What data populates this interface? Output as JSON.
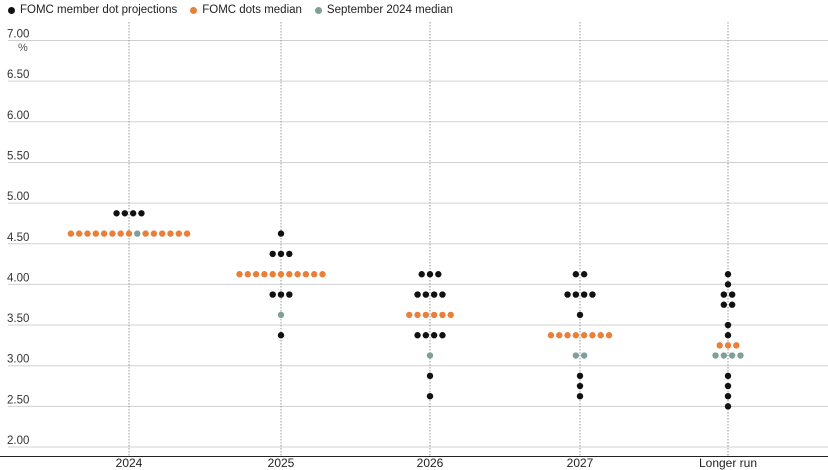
{
  "colors": {
    "member": "#111111",
    "median": "#e8803a",
    "september": "#7fa09a",
    "grid": "#d0d0d0",
    "vline": "#9a9a9a",
    "axis": "#222222"
  },
  "legend": {
    "member": "FOMC member dot projections",
    "median": "FOMC dots median",
    "september": "September 2024 median"
  },
  "chart_data": {
    "type": "scatter",
    "unit": "%",
    "ylim": [
      2.0,
      7.0
    ],
    "yticks": [
      "7.00",
      "6.50",
      "6.00",
      "5.50",
      "5.00",
      "4.50",
      "4.00",
      "3.50",
      "3.00",
      "2.50",
      "2.00"
    ],
    "categories": [
      "2024",
      "2025",
      "2026",
      "2027",
      "Longer run"
    ],
    "grid": true,
    "legend_position": "top-left",
    "series": [
      {
        "name": "FOMC member dot projections",
        "points": [
          {
            "x": "2024",
            "y": 4.875,
            "count": 4
          },
          {
            "x": "2025",
            "y": 4.625,
            "count": 1
          },
          {
            "x": "2025",
            "y": 4.375,
            "count": 3
          },
          {
            "x": "2025",
            "y": 3.875,
            "count": 3
          },
          {
            "x": "2025",
            "y": 3.375,
            "count": 1
          },
          {
            "x": "2026",
            "y": 4.125,
            "count": 3
          },
          {
            "x": "2026",
            "y": 3.875,
            "count": 4
          },
          {
            "x": "2026",
            "y": 3.375,
            "count": 4
          },
          {
            "x": "2026",
            "y": 2.875,
            "count": 1
          },
          {
            "x": "2026",
            "y": 2.625,
            "count": 1
          },
          {
            "x": "2027",
            "y": 4.125,
            "count": 2
          },
          {
            "x": "2027",
            "y": 3.875,
            "count": 4
          },
          {
            "x": "2027",
            "y": 3.625,
            "count": 1
          },
          {
            "x": "2027",
            "y": 2.875,
            "count": 1
          },
          {
            "x": "2027",
            "y": 2.75,
            "count": 1
          },
          {
            "x": "2027",
            "y": 2.625,
            "count": 1
          },
          {
            "x": "Longer run",
            "y": 4.125,
            "count": 1
          },
          {
            "x": "Longer run",
            "y": 4.0,
            "count": 1
          },
          {
            "x": "Longer run",
            "y": 3.875,
            "count": 2
          },
          {
            "x": "Longer run",
            "y": 3.75,
            "count": 2
          },
          {
            "x": "Longer run",
            "y": 3.5,
            "count": 1
          },
          {
            "x": "Longer run",
            "y": 3.375,
            "count": 1
          },
          {
            "x": "Longer run",
            "y": 2.875,
            "count": 1
          },
          {
            "x": "Longer run",
            "y": 2.75,
            "count": 1
          },
          {
            "x": "Longer run",
            "y": 2.625,
            "count": 1
          },
          {
            "x": "Longer run",
            "y": 2.5,
            "count": 1
          }
        ]
      },
      {
        "name": "FOMC dots median",
        "points": [
          {
            "x": "2024",
            "y": 4.625,
            "count": 14,
            "position": 8
          },
          {
            "x": "2025",
            "y": 4.125,
            "count": 11
          },
          {
            "x": "2026",
            "y": 3.625,
            "count": 6
          },
          {
            "x": "2027",
            "y": 3.375,
            "count": 8
          },
          {
            "x": "Longer run",
            "y": 3.25,
            "count": 3
          }
        ]
      },
      {
        "name": "September 2024 median",
        "points": [
          {
            "x": "2024",
            "y": 4.625,
            "count": 1
          },
          {
            "x": "2025",
            "y": 3.625,
            "count": 1
          },
          {
            "x": "2026",
            "y": 3.125,
            "count": 1
          },
          {
            "x": "2027",
            "y": 3.125,
            "count": 2
          },
          {
            "x": "Longer run",
            "y": 3.125,
            "count": 4
          }
        ]
      }
    ]
  }
}
